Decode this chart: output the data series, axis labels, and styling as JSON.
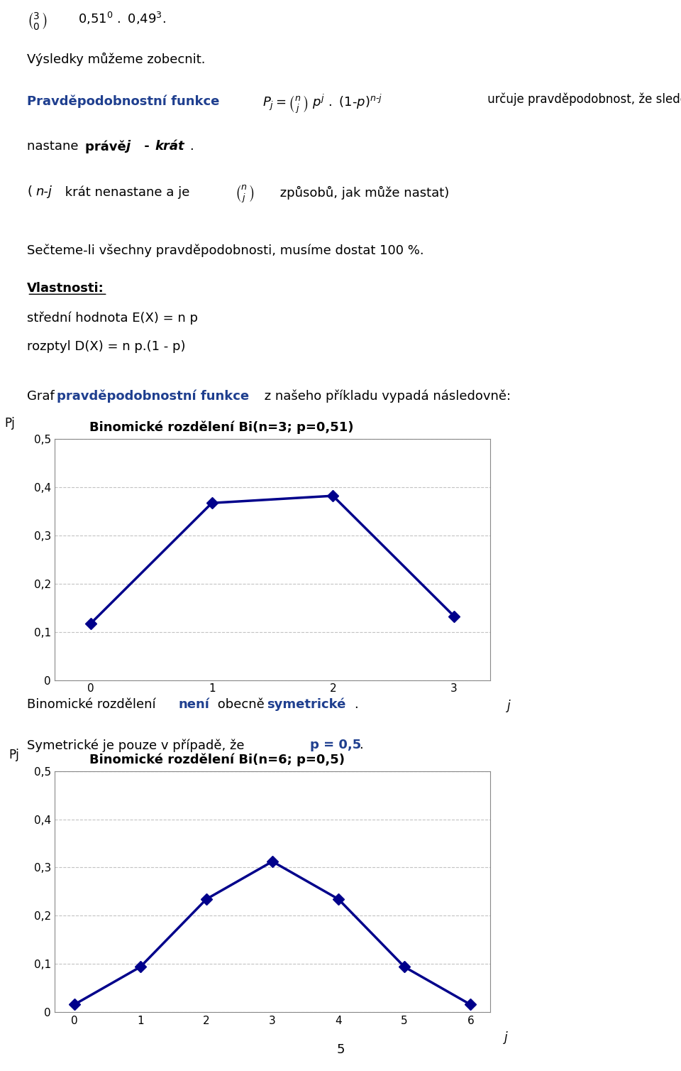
{
  "chart1": {
    "title": "Binomické rozdělení Bi(n=3; p=0,51)",
    "x": [
      0,
      1,
      2,
      3
    ],
    "y": [
      0.117649,
      0.367434,
      0.382347,
      0.132651
    ],
    "xlabel": "j",
    "ylabel": "Pj",
    "ylim": [
      0,
      0.5
    ],
    "yticks": [
      0,
      0.1,
      0.2,
      0.3,
      0.4,
      0.5
    ],
    "xticks": [
      0,
      1,
      2,
      3
    ],
    "line_color": "#00008B",
    "marker": "D",
    "markersize": 8,
    "linewidth": 2.5
  },
  "chart2": {
    "title": "Binomické rozdělení Bi(n=6; p=0,5)",
    "x": [
      0,
      1,
      2,
      3,
      4,
      5,
      6
    ],
    "y": [
      0.015625,
      0.09375,
      0.234375,
      0.3125,
      0.234375,
      0.09375,
      0.015625
    ],
    "xlabel": "j",
    "ylabel": "Pj",
    "ylim": [
      0,
      0.5
    ],
    "yticks": [
      0,
      0.1,
      0.2,
      0.3,
      0.4,
      0.5
    ],
    "xticks": [
      0,
      1,
      2,
      3,
      4,
      5,
      6
    ],
    "line_color": "#00008B",
    "marker": "D",
    "markersize": 8,
    "linewidth": 2.5
  },
  "page_bg": "#ffffff",
  "text_color": "#000000",
  "blue_color": "#1F3F8F",
  "grid_color": "#aaaaaa",
  "grid_style": "--",
  "grid_alpha": 0.7,
  "title_fontsize": 13,
  "axis_label_fontsize": 12,
  "tick_fontsize": 11
}
